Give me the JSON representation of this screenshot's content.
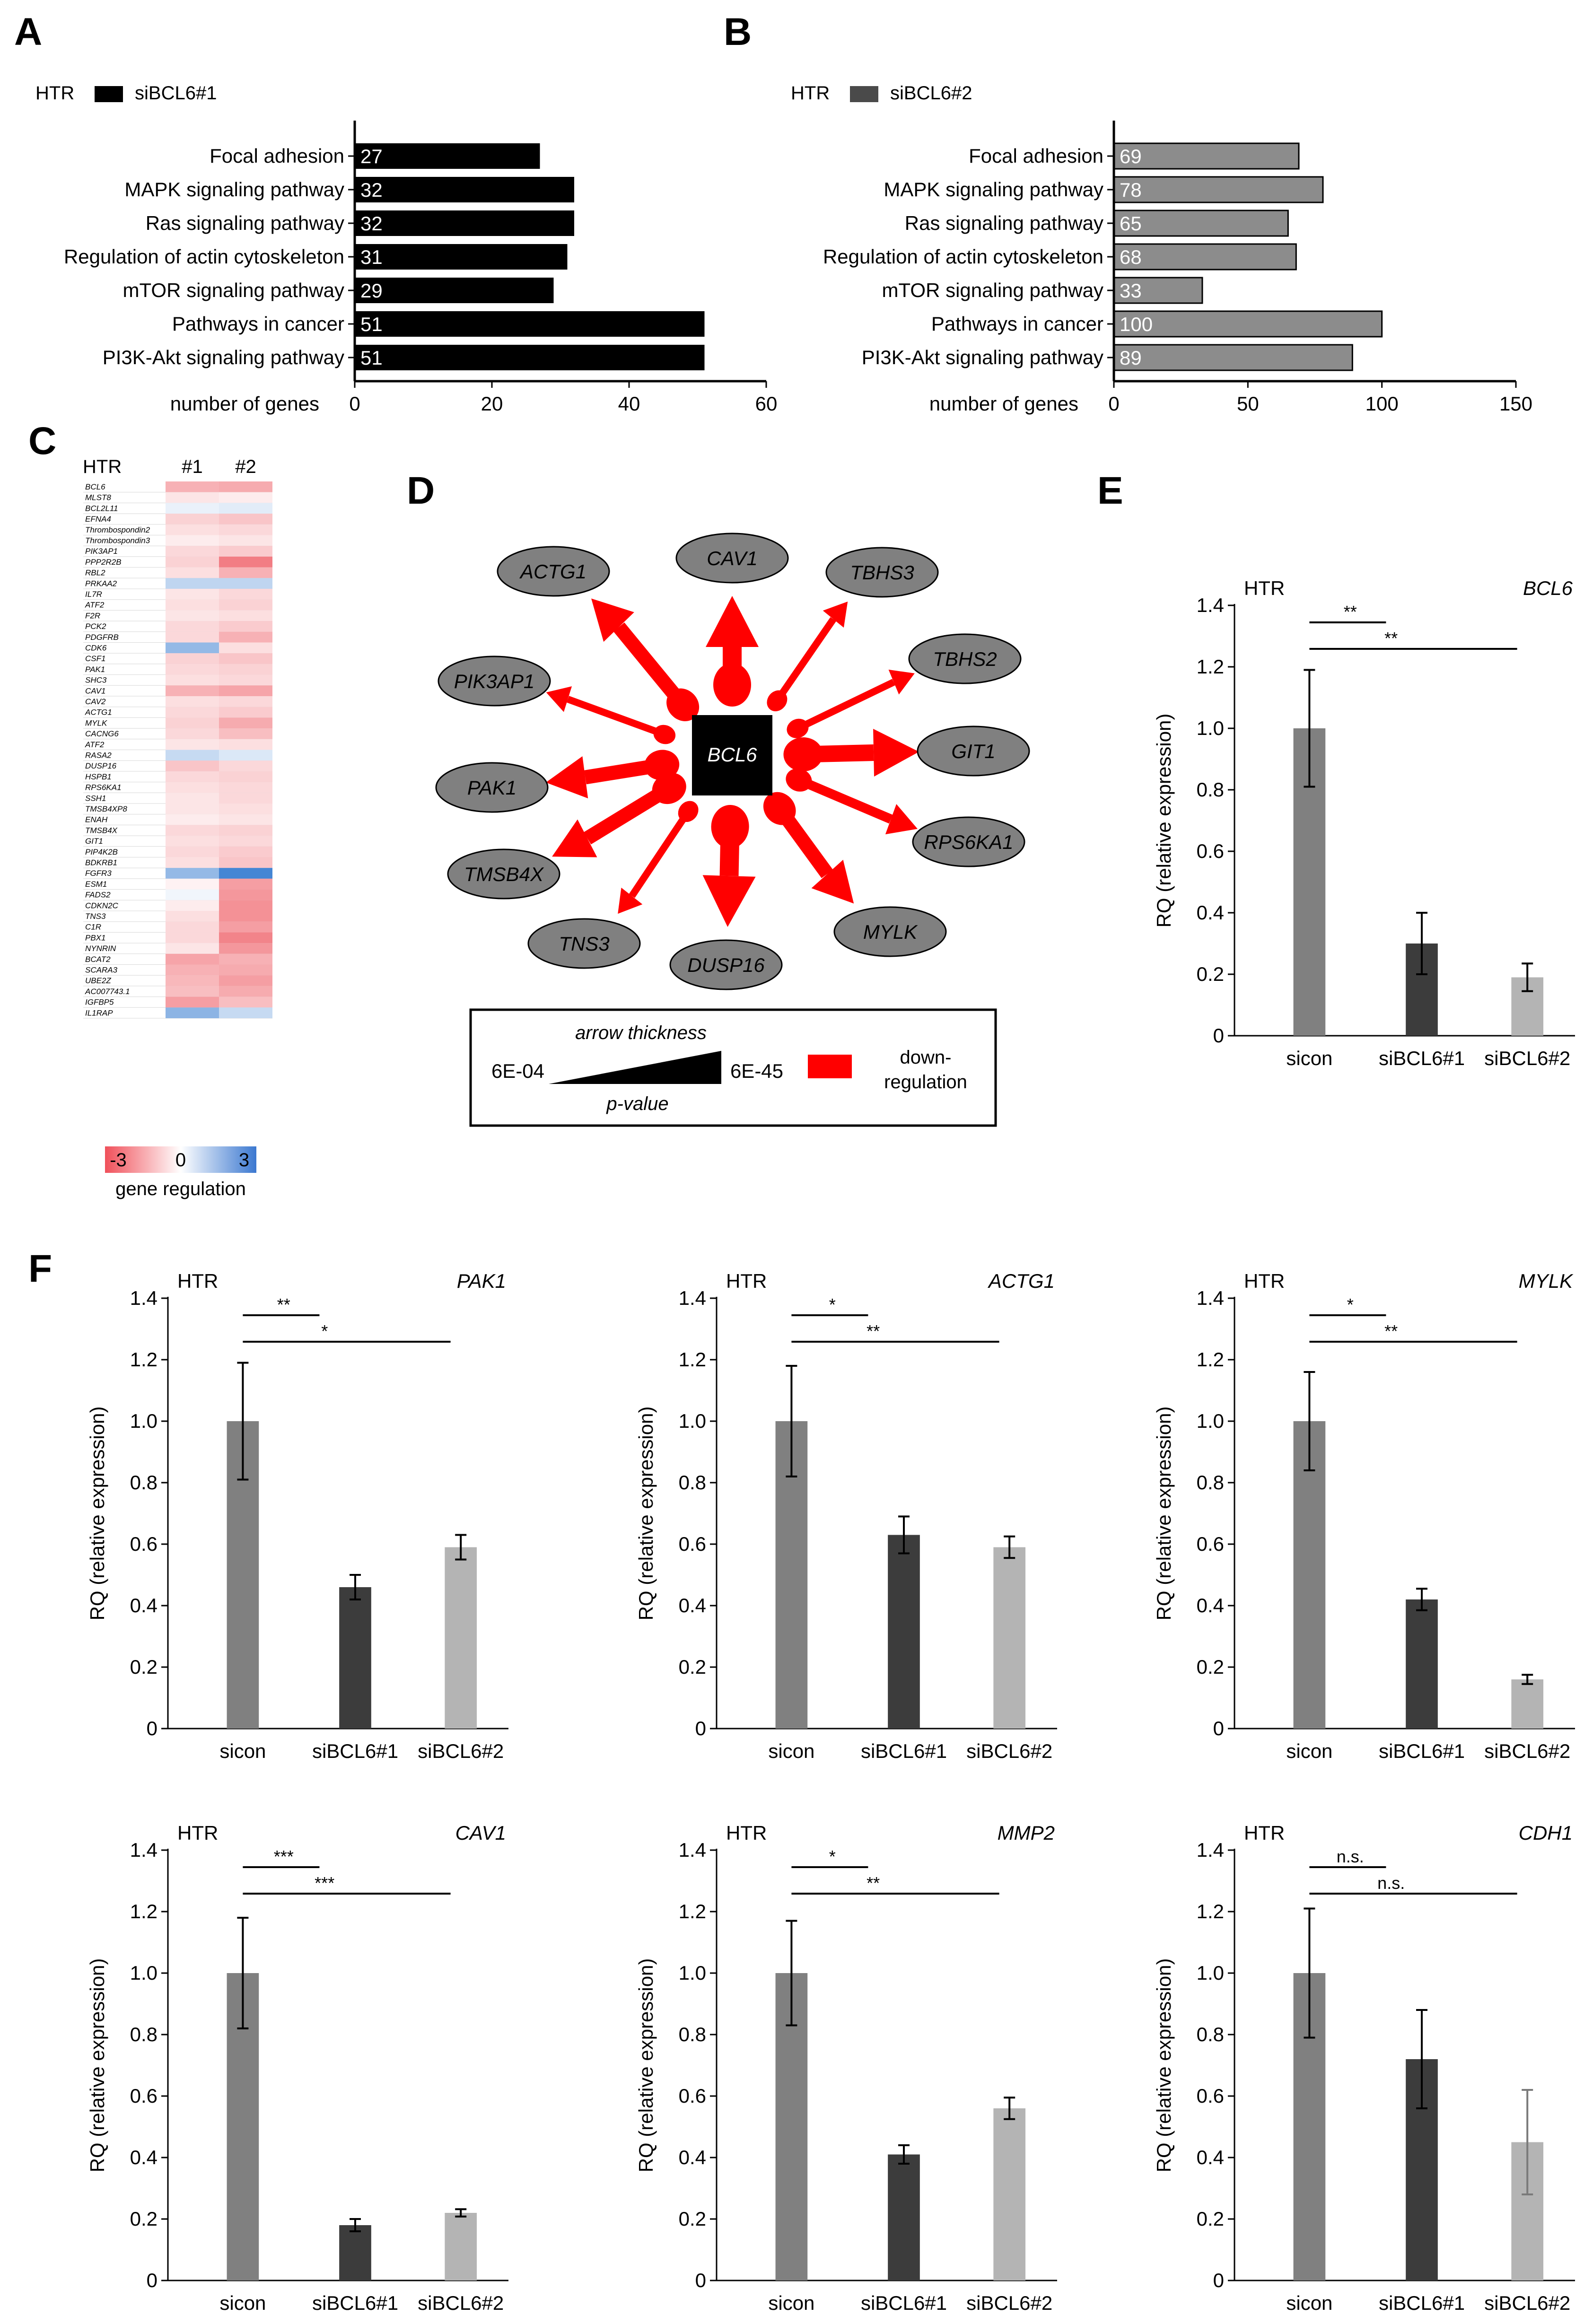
{
  "panels": {
    "A": "A",
    "B": "B",
    "C": "C",
    "D": "D",
    "E": "E",
    "F": "F"
  },
  "colors": {
    "black": "#000000",
    "dark": "#3c3c3c",
    "mid": "#808080",
    "light": "#b4b4b4",
    "barB": "#8c8c8c",
    "legendB": "#4a4a4a",
    "red": "#ff0000",
    "node": "#808080",
    "heat_neg": "#f0505a",
    "heat_pos": "#3b78d0"
  },
  "chart_data": [
    {
      "id": "A",
      "type": "bar",
      "orientation": "horizontal",
      "cell_line": "HTR",
      "legend": "siBCL6#1",
      "categories": [
        "Focal adhesion",
        "MAPK signaling pathway",
        "Ras signaling pathway",
        "Regulation of actin cytoskeleton",
        "mTOR signaling pathway",
        "Pathways in cancer",
        "PI3K-Akt signaling pathway"
      ],
      "values": [
        27,
        32,
        32,
        31,
        29,
        51,
        51
      ],
      "xlabel": "number of genes",
      "xlim": [
        0,
        60
      ],
      "ticks": [
        0,
        20,
        40,
        60
      ]
    },
    {
      "id": "B",
      "type": "bar",
      "orientation": "horizontal",
      "cell_line": "HTR",
      "legend": "siBCL6#2",
      "categories": [
        "Focal adhesion",
        "MAPK signaling pathway",
        "Ras signaling pathway",
        "Regulation of actin cytoskeleton",
        "mTOR signaling pathway",
        "Pathways in cancer",
        "PI3K-Akt signaling pathway"
      ],
      "values": [
        69,
        78,
        65,
        68,
        33,
        100,
        89
      ],
      "xlabel": "number of genes",
      "xlim": [
        0,
        150
      ],
      "ticks": [
        0,
        50,
        100,
        150
      ]
    },
    {
      "id": "C",
      "type": "heatmap",
      "title": "HTR",
      "columns": [
        "#1",
        "#2"
      ],
      "genes": [
        "BCL6",
        "MLST8",
        "BCL2L11",
        "EFNA4",
        "Thrombospondin2",
        "Thrombospondin3",
        "PIK3AP1",
        "PPP2R2B",
        "RBL2",
        "PRKAA2",
        "IL7R",
        "ATF2",
        "F2R",
        "PCK2",
        "PDGFRB",
        "CDK6",
        "CSF1",
        "PAK1",
        "SHC3",
        "CAV1",
        "CAV2",
        "ACTG1",
        "MYLK",
        "CACNG6",
        "ATF2",
        "RASA2",
        "DUSP16",
        "HSPB1",
        "RPS6KA1",
        "SSH1",
        "TMSB4XP8",
        "ENAH",
        "TMSB4X",
        "GIT1",
        "PIP4K2B",
        "BDKRB1",
        "FGFR3",
        "ESM1",
        "FADS2",
        "CDKN2C",
        "TNS3",
        "C1R",
        "PBX1",
        "NYNRIN",
        "BCAT2",
        "SCARA3",
        "UBE2Z",
        "AC007743.1",
        "IGFBP5",
        "IL1RAP"
      ],
      "values": [
        [
          -1.2,
          -1.3
        ],
        [
          -0.4,
          -0.3
        ],
        [
          0.3,
          0.4
        ],
        [
          -0.7,
          -0.9
        ],
        [
          -0.5,
          -0.6
        ],
        [
          -0.3,
          -0.4
        ],
        [
          -0.6,
          -0.8
        ],
        [
          -0.7,
          -2.0
        ],
        [
          -0.5,
          -1.2
        ],
        [
          0.9,
          0.9
        ],
        [
          -0.4,
          -0.6
        ],
        [
          -0.5,
          -0.7
        ],
        [
          -0.4,
          -0.5
        ],
        [
          -0.6,
          -0.8
        ],
        [
          -0.6,
          -1.2
        ],
        [
          1.5,
          -0.5
        ],
        [
          -0.7,
          -0.9
        ],
        [
          -0.6,
          -0.7
        ],
        [
          -0.5,
          -0.6
        ],
        [
          -1.2,
          -1.4
        ],
        [
          -0.5,
          -0.6
        ],
        [
          -0.6,
          -0.8
        ],
        [
          -0.7,
          -1.3
        ],
        [
          -0.6,
          -1.0
        ],
        [
          -0.4,
          -0.5
        ],
        [
          0.8,
          0.5
        ],
        [
          -0.9,
          -0.6
        ],
        [
          -0.6,
          -0.7
        ],
        [
          -0.5,
          -0.6
        ],
        [
          -0.4,
          -0.6
        ],
        [
          -0.4,
          -0.5
        ],
        [
          -0.3,
          -0.4
        ],
        [
          -0.6,
          -0.7
        ],
        [
          -0.5,
          -0.6
        ],
        [
          -0.6,
          -0.8
        ],
        [
          -0.5,
          -0.9
        ],
        [
          1.5,
          2.6
        ],
        [
          -0.2,
          -1.5
        ],
        [
          0.2,
          -1.6
        ],
        [
          -0.3,
          -1.7
        ],
        [
          -0.5,
          -1.7
        ],
        [
          -0.6,
          -1.5
        ],
        [
          -0.6,
          -1.9
        ],
        [
          -0.4,
          -1.6
        ],
        [
          -1.4,
          -1.2
        ],
        [
          -1.2,
          -1.3
        ],
        [
          -1.1,
          -1.5
        ],
        [
          -1.0,
          -1.3
        ],
        [
          -1.5,
          -1.0
        ],
        [
          1.6,
          0.8
        ]
      ],
      "scale": {
        "min": -3,
        "mid": 0,
        "max": 3,
        "label": "gene regulation"
      }
    },
    {
      "id": "D",
      "type": "network",
      "center": "BCL6",
      "targets": [
        {
          "gene": "CAV1",
          "weight": 8
        },
        {
          "gene": "TBHS3",
          "weight": 3
        },
        {
          "gene": "TBHS2",
          "weight": 3
        },
        {
          "gene": "GIT1",
          "weight": 7
        },
        {
          "gene": "RPS6KA1",
          "weight": 4
        },
        {
          "gene": "MYLK",
          "weight": 6
        },
        {
          "gene": "DUSP16",
          "weight": 8
        },
        {
          "gene": "TNS3",
          "weight": 3
        },
        {
          "gene": "TMSB4X",
          "weight": 6
        },
        {
          "gene": "PAK1",
          "weight": 6
        },
        {
          "gene": "PIK3AP1",
          "weight": 3
        },
        {
          "gene": "ACTG1",
          "weight": 6
        }
      ],
      "legend": {
        "thickness_label": "arrow thickness",
        "p_low": "6E-04",
        "p_high": "6E-45",
        "p_label": "p-value",
        "down_label_1": "down-",
        "down_label_2": "regulation"
      }
    },
    {
      "id": "E",
      "type": "bar",
      "cell_line": "HTR",
      "gene": "BCL6",
      "categories": [
        "sicon",
        "siBCL6#1",
        "siBCL6#2"
      ],
      "values": [
        1.0,
        0.3,
        0.19
      ],
      "errors": [
        0.19,
        0.1,
        0.045
      ],
      "ylabel": "RQ (relative expression)",
      "ylim": [
        0,
        1.4
      ],
      "yticks": [
        "0",
        "0.2",
        "0.4",
        "0.6",
        "0.8",
        "1.0",
        "1.2",
        "1.4"
      ],
      "significance": [
        "**",
        "**"
      ]
    },
    {
      "id": "F1",
      "type": "bar",
      "cell_line": "HTR",
      "gene": "PAK1",
      "categories": [
        "sicon",
        "siBCL6#1",
        "siBCL6#2"
      ],
      "values": [
        1.0,
        0.46,
        0.59
      ],
      "errors": [
        0.19,
        0.04,
        0.04
      ],
      "ylabel": "RQ (relative expression)",
      "ylim": [
        0,
        1.4
      ],
      "yticks": [
        "0",
        "0.2",
        "0.4",
        "0.6",
        "0.8",
        "1.0",
        "1.2",
        "1.4"
      ],
      "significance": [
        "**",
        "*"
      ]
    },
    {
      "id": "F2",
      "type": "bar",
      "cell_line": "HTR",
      "gene": "ACTG1",
      "categories": [
        "sicon",
        "siBCL6#1",
        "siBCL6#2"
      ],
      "values": [
        1.0,
        0.63,
        0.59
      ],
      "errors": [
        0.18,
        0.06,
        0.035
      ],
      "ylabel": "RQ (relative expression)",
      "ylim": [
        0,
        1.4
      ],
      "yticks": [
        "0",
        "0.2",
        "0.4",
        "0.6",
        "0.8",
        "1.0",
        "1.2",
        "1.4"
      ],
      "significance": [
        "*",
        "**"
      ]
    },
    {
      "id": "F3",
      "type": "bar",
      "cell_line": "HTR",
      "gene": "MYLK",
      "categories": [
        "sicon",
        "siBCL6#1",
        "siBCL6#2"
      ],
      "values": [
        1.0,
        0.42,
        0.16
      ],
      "errors": [
        0.16,
        0.035,
        0.015
      ],
      "ylabel": "RQ (relative expression)",
      "ylim": [
        0,
        1.4
      ],
      "yticks": [
        "0",
        "0.2",
        "0.4",
        "0.6",
        "0.8",
        "1.0",
        "1.2",
        "1.4"
      ],
      "significance": [
        "*",
        "**"
      ]
    },
    {
      "id": "F4",
      "type": "bar",
      "cell_line": "HTR",
      "gene": "CAV1",
      "categories": [
        "sicon",
        "siBCL6#1",
        "siBCL6#2"
      ],
      "values": [
        1.0,
        0.18,
        0.22
      ],
      "errors": [
        0.18,
        0.02,
        0.012
      ],
      "ylabel": "RQ (relative expression)",
      "ylim": [
        0,
        1.4
      ],
      "yticks": [
        "0",
        "0.2",
        "0.4",
        "0.6",
        "0.8",
        "1.0",
        "1.2",
        "1.4"
      ],
      "significance": [
        "***",
        "***"
      ]
    },
    {
      "id": "F5",
      "type": "bar",
      "cell_line": "HTR",
      "gene": "MMP2",
      "categories": [
        "sicon",
        "siBCL6#1",
        "siBCL6#2"
      ],
      "values": [
        1.0,
        0.41,
        0.56
      ],
      "errors": [
        0.17,
        0.03,
        0.035
      ],
      "ylabel": "RQ (relative expression)",
      "ylim": [
        0,
        1.4
      ],
      "yticks": [
        "0",
        "0.2",
        "0.4",
        "0.6",
        "0.8",
        "1.0",
        "1.2",
        "1.4"
      ],
      "significance": [
        "*",
        "**"
      ]
    },
    {
      "id": "F6",
      "type": "bar",
      "cell_line": "HTR",
      "gene": "CDH1",
      "categories": [
        "sicon",
        "siBCL6#1",
        "siBCL6#2"
      ],
      "values": [
        1.0,
        0.72,
        0.45
      ],
      "errors": [
        0.21,
        0.16,
        0.17
      ],
      "ylabel": "RQ (relative expression)",
      "ylim": [
        0,
        1.4
      ],
      "yticks": [
        "0",
        "0.2",
        "0.4",
        "0.6",
        "0.8",
        "1.0",
        "1.2",
        "1.4"
      ],
      "significance": [
        "n.s.",
        "n.s."
      ]
    }
  ]
}
